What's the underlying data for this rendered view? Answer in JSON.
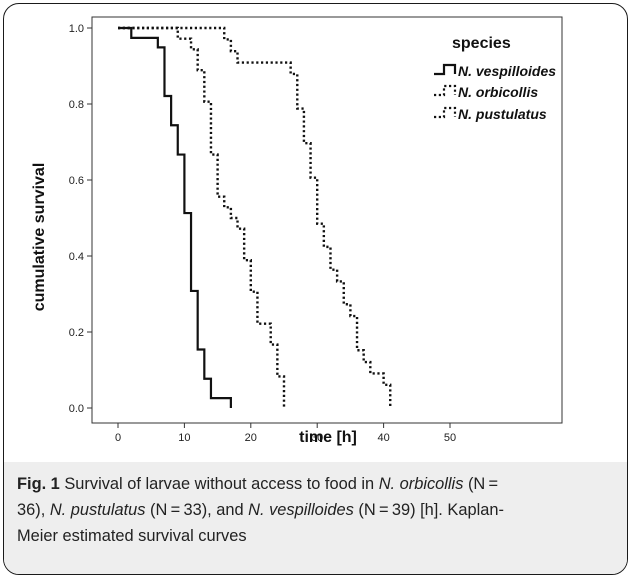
{
  "chart_data": {
    "type": "line",
    "step": true,
    "xlabel": "time [h]",
    "ylabel": "cumulative survival",
    "xlim": [
      0,
      50
    ],
    "ylim": [
      0.0,
      1.0
    ],
    "x_ticks": [
      "0",
      "10",
      "20",
      "30",
      "40",
      "50"
    ],
    "y_ticks": [
      "0.0",
      "0.2",
      "0.4",
      "0.6",
      "0.8",
      "1.0"
    ],
    "grid": false,
    "legend_title": "species",
    "legend_position": "top-right",
    "series": [
      {
        "name": "N. vespilloides",
        "line_style": "solid",
        "points": [
          [
            0,
            1.0
          ],
          [
            2,
            0.974
          ],
          [
            6,
            0.949
          ],
          [
            7,
            0.821
          ],
          [
            8,
            0.744
          ],
          [
            9,
            0.667
          ],
          [
            10,
            0.513
          ],
          [
            11,
            0.308
          ],
          [
            12,
            0.154
          ],
          [
            13,
            0.077
          ],
          [
            14,
            0.026
          ],
          [
            17,
            0.0
          ]
        ]
      },
      {
        "name": "N. orbicollis",
        "line_style": "dotted",
        "points": [
          [
            0,
            1.0
          ],
          [
            9,
            0.972
          ],
          [
            11,
            0.944
          ],
          [
            12,
            0.889
          ],
          [
            13,
            0.806
          ],
          [
            14,
            0.667
          ],
          [
            15,
            0.556
          ],
          [
            16,
            0.528
          ],
          [
            17,
            0.5
          ],
          [
            18,
            0.472
          ],
          [
            19,
            0.389
          ],
          [
            20,
            0.306
          ],
          [
            21,
            0.222
          ],
          [
            23,
            0.167
          ],
          [
            24,
            0.083
          ],
          [
            25,
            0.0
          ]
        ]
      },
      {
        "name": "N. pustulatus",
        "line_style": "dotted",
        "points": [
          [
            0,
            1.0
          ],
          [
            15,
            1.0
          ],
          [
            16,
            0.97
          ],
          [
            17,
            0.939
          ],
          [
            18,
            0.909
          ],
          [
            26,
            0.879
          ],
          [
            27,
            0.788
          ],
          [
            28,
            0.697
          ],
          [
            29,
            0.606
          ],
          [
            30,
            0.485
          ],
          [
            31,
            0.424
          ],
          [
            32,
            0.364
          ],
          [
            33,
            0.333
          ],
          [
            34,
            0.273
          ],
          [
            35,
            0.242
          ],
          [
            36,
            0.152
          ],
          [
            37,
            0.121
          ],
          [
            38,
            0.091
          ],
          [
            40,
            0.061
          ],
          [
            41,
            0.0
          ]
        ]
      }
    ]
  },
  "caption": {
    "label": "Fig. 1",
    "text_1": " Survival of larvae without access to food in ",
    "species_1": "N. orbicollis",
    "text_2": " (N = ",
    "text_3": "36), ",
    "species_2": "N. pustulatus",
    "text_4": " (N = 33), and ",
    "species_3": "N. vespilloides",
    "text_5": " (N = 39) [h]. Kaplan-",
    "text_6": "Meier estimated survival curves"
  }
}
